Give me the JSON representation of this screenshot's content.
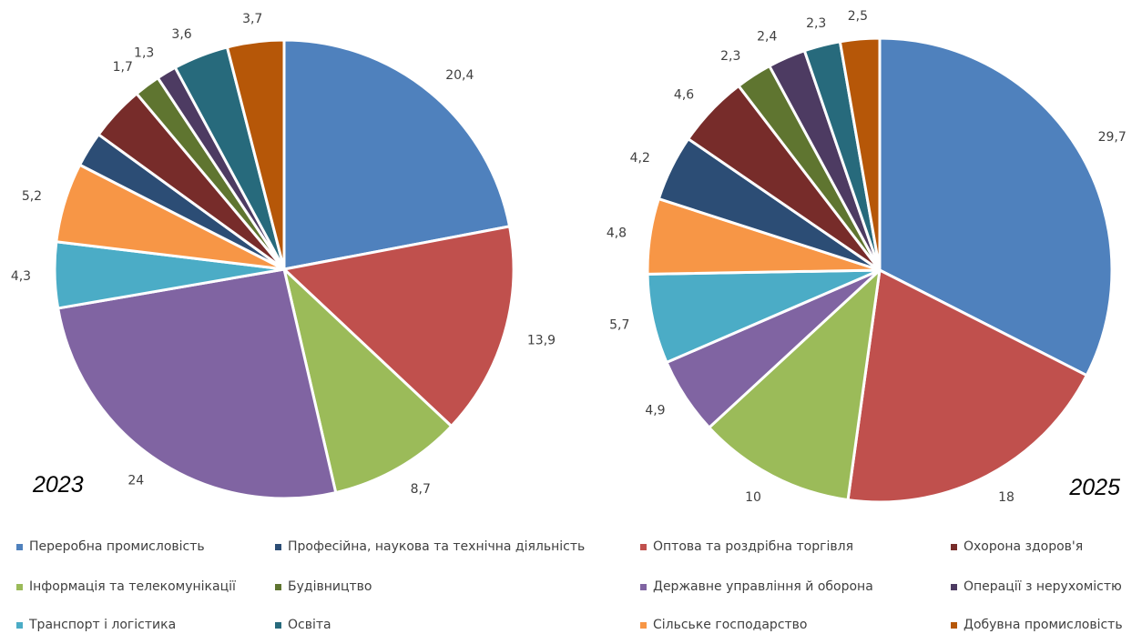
{
  "chart_data": [
    {
      "type": "pie",
      "title": "2023",
      "series": [
        {
          "category": "Переробна промисловість",
          "value": 20.4,
          "label": "20,4",
          "color": "#4f81bd"
        },
        {
          "category": "Оптова та роздрібна торгівля",
          "value": 13.9,
          "label": "13,9",
          "color": "#c0504d"
        },
        {
          "category": "Інформація та телекомунікації",
          "value": 8.7,
          "label": "8,7",
          "color": "#9bbb59"
        },
        {
          "category": "Державне управління й оборона",
          "value": 24,
          "label": "24",
          "color": "#8064a2"
        },
        {
          "category": "Транспорт і логістика",
          "value": 4.3,
          "label": "4,3",
          "color": "#4bacc6"
        },
        {
          "category": "Сільське господарство",
          "value": 5.2,
          "label": "5,2",
          "color": "#f79646"
        },
        {
          "category": "Професійна, наукова та технічна діяльність",
          "value": 2.3,
          "label": "",
          "color": "#2c4d75"
        },
        {
          "category": "Охорона здоров'я",
          "value": 3.6,
          "label": "",
          "color": "#772c2a"
        },
        {
          "category": "Будівництво",
          "value": 1.7,
          "label": "1,7",
          "color": "#5f7530"
        },
        {
          "category": "Операції з нерухомістю",
          "value": 1.3,
          "label": "1,3",
          "color": "#4d3b62"
        },
        {
          "category": "Освіта",
          "value": 3.6,
          "label": "3,6",
          "color": "#276a7c"
        },
        {
          "category": "Добувна промисловість",
          "value": 3.7,
          "label": "3,7",
          "color": "#b65708"
        }
      ]
    },
    {
      "type": "pie",
      "title": "2025",
      "series": [
        {
          "category": "Переробна промисловість",
          "value": 29.7,
          "label": "29,7",
          "color": "#4f81bd"
        },
        {
          "category": "Оптова та роздрібна торгівля",
          "value": 18,
          "label": "18",
          "color": "#c0504d"
        },
        {
          "category": "Інформація та телекомунікації",
          "value": 10,
          "label": "10",
          "color": "#9bbb59"
        },
        {
          "category": "Державне управління й оборона",
          "value": 4.9,
          "label": "4,9",
          "color": "#8064a2"
        },
        {
          "category": "Транспорт і логістика",
          "value": 5.7,
          "label": "5,7",
          "color": "#4bacc6"
        },
        {
          "category": "Сільське господарство",
          "value": 4.8,
          "label": "4,8",
          "color": "#f79646"
        },
        {
          "category": "Професійна, наукова та технічна діяльність",
          "value": 4.2,
          "label": "4,2",
          "color": "#2c4d75"
        },
        {
          "category": "Охорона здоров'я",
          "value": 4.6,
          "label": "4,6",
          "color": "#772c2a"
        },
        {
          "category": "Будівництво",
          "value": 2.3,
          "label": "2,3",
          "color": "#5f7530"
        },
        {
          "category": "Операції з нерухомістю",
          "value": 2.4,
          "label": "2,4",
          "color": "#4d3b62"
        },
        {
          "category": "Освіта",
          "value": 2.3,
          "label": "2,3",
          "color": "#276a7c"
        },
        {
          "category": "Добувна промисловість",
          "value": 2.5,
          "label": "2,5",
          "color": "#b65708"
        }
      ]
    }
  ],
  "legend": [
    {
      "label": "Переробна промисловість",
      "color": "#4f81bd"
    },
    {
      "label": "Професійна, наукова та технічна діяльність",
      "color": "#2c4d75"
    },
    {
      "label": "Оптова та роздрібна торгівля",
      "color": "#c0504d"
    },
    {
      "label": "Охорона здоров'я",
      "color": "#772c2a"
    },
    {
      "label": "Інформація та телекомунікації",
      "color": "#9bbb59"
    },
    {
      "label": "Будівництво",
      "color": "#5f7530"
    },
    {
      "label": "Державне управління й оборона",
      "color": "#8064a2"
    },
    {
      "label": "Операції з нерухомістю",
      "color": "#4d3b62"
    },
    {
      "label": "Транспорт і логістика",
      "color": "#4bacc6"
    },
    {
      "label": "Освіта",
      "color": "#276a7c"
    },
    {
      "label": "Сільське господарство",
      "color": "#f79646"
    },
    {
      "label": "Добувна промисловість",
      "color": "#b65708"
    }
  ]
}
